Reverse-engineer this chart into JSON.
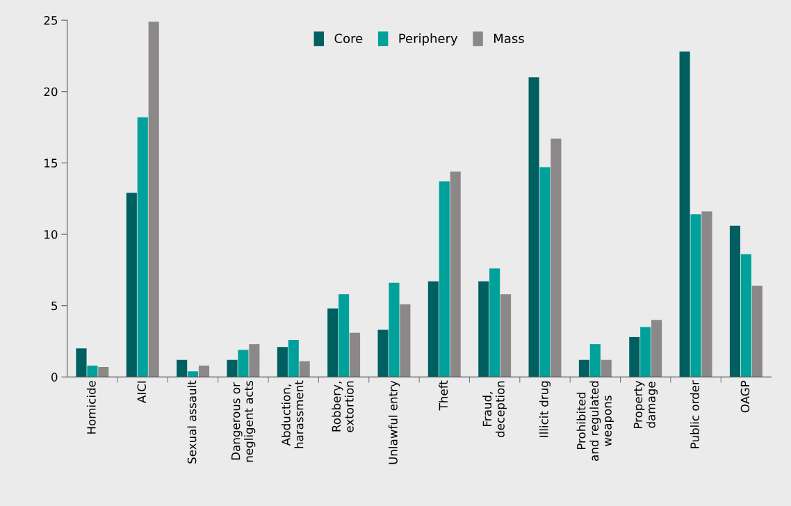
{
  "chart_data": {
    "type": "bar",
    "categories": [
      "Homicide",
      "AICI",
      "Sexual assault",
      "Dangerous or\nnegligent acts",
      "Abduction,\nharassment",
      "Robbery,\nextortion",
      "Unlawful entry",
      "Theft",
      "Fraud,\ndeception",
      "Illicit drug",
      "Prohibited\nand regulated\nweapons",
      "Property\ndamage",
      "Public order",
      "OAGP"
    ],
    "series": [
      {
        "name": "Core",
        "color": "#005f61",
        "values": [
          2.0,
          12.9,
          1.2,
          1.2,
          2.1,
          4.8,
          3.3,
          6.7,
          6.7,
          21.0,
          1.2,
          2.8,
          22.8,
          10.6
        ]
      },
      {
        "name": "Periphery",
        "color": "#00a19a",
        "values": [
          0.8,
          18.2,
          0.4,
          1.9,
          2.6,
          5.8,
          6.6,
          13.7,
          7.6,
          14.7,
          2.3,
          3.5,
          11.4,
          8.6
        ]
      },
      {
        "name": "Mass",
        "color": "#8c8887",
        "values": [
          0.7,
          24.9,
          0.8,
          2.3,
          1.1,
          3.1,
          5.1,
          14.4,
          5.8,
          16.7,
          1.2,
          4.0,
          11.6,
          6.4
        ]
      }
    ],
    "ylim": [
      0,
      25
    ],
    "yticks": [
      0,
      5,
      10,
      15,
      20,
      25
    ],
    "grid": false,
    "legend": "top"
  }
}
